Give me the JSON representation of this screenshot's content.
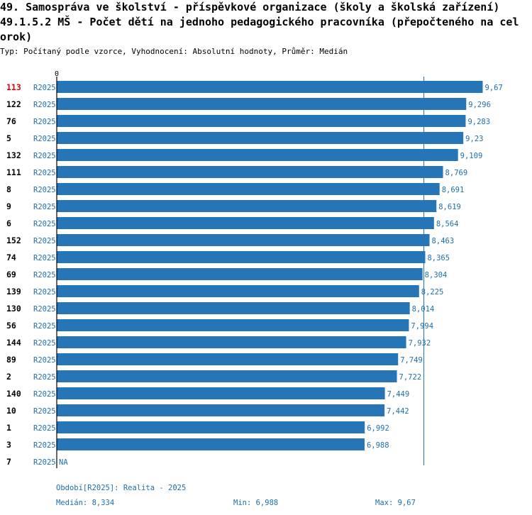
{
  "header": {
    "title_line1": "49. Samospráva ve školství - příspěvkové organizace (školy a školská zařízení)",
    "title_line2": "49.1.5.2 MŠ - Počet dětí na jednoho pedagogického pracovníka (přepočteného na cel",
    "title_line3": "orok)",
    "subtitle": "Typ: Počítaný podle vzorce, Vyhodnocení: Absolutní hodnoty, Průměr: Medián"
  },
  "chart_data": {
    "type": "bar",
    "orientation": "horizontal",
    "axis_zero_label": "0",
    "xlim": [
      0,
      10.5
    ],
    "median": 8.334,
    "highlight_category": "113",
    "period_label": "R2025",
    "categories": [
      "113",
      "122",
      "76",
      "5",
      "132",
      "111",
      "8",
      "9",
      "6",
      "152",
      "74",
      "69",
      "139",
      "130",
      "56",
      "144",
      "89",
      "2",
      "140",
      "10",
      "1",
      "3",
      "7"
    ],
    "values": [
      9.67,
      9.296,
      9.283,
      9.23,
      9.109,
      8.769,
      8.691,
      8.619,
      8.564,
      8.463,
      8.365,
      8.304,
      8.225,
      8.014,
      7.994,
      7.932,
      7.749,
      7.722,
      7.449,
      7.442,
      6.992,
      6.988,
      null
    ],
    "value_labels": [
      "9,67",
      "9,296",
      "9,283",
      "9,23",
      "9,109",
      "8,769",
      "8,691",
      "8,619",
      "8,564",
      "8,463",
      "8,365",
      "8,304",
      "8,225",
      "8,014",
      "7,994",
      "7,932",
      "7,749",
      "7,722",
      "7,449",
      "7,442",
      "6,992",
      "6,988",
      "NA"
    ]
  },
  "footer": {
    "period": "Období[R2025]: Realita - 2025",
    "median": "Medián: 8,334",
    "min": "Min: 6,988",
    "max": "Max: 9,67"
  },
  "colors": {
    "bar": "#2575b7",
    "label": "#1f6fb2",
    "highlight": "#e00000"
  }
}
